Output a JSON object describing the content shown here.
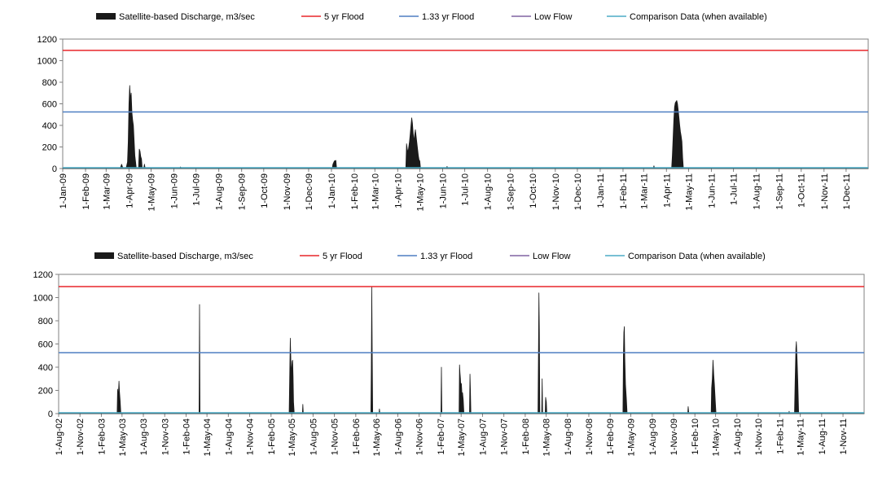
{
  "colors": {
    "discharge": "#1a1a1a",
    "flood5": "#e8262a",
    "flood133": "#4f7fc2",
    "lowflow": "#8064a2",
    "comparison": "#4bacc6",
    "axis": "#808080"
  },
  "chart_data": [
    {
      "type": "area",
      "legend": [
        {
          "key": "discharge",
          "label": "Satellite-based Discharge, m3/sec",
          "style": "area"
        },
        {
          "key": "flood5",
          "label": "5 yr Flood",
          "style": "line"
        },
        {
          "key": "flood133",
          "label": "1.33 yr Flood",
          "style": "line"
        },
        {
          "key": "lowflow",
          "label": "Low Flow",
          "style": "line"
        },
        {
          "key": "comparison",
          "label": "Comparison Data (when available)",
          "style": "line"
        }
      ],
      "legend_position": "top",
      "ylim": [
        0,
        1200
      ],
      "yticks": [
        0,
        200,
        400,
        600,
        800,
        1000,
        1200
      ],
      "xlim": [
        "2009-01-01",
        "2011-12-31"
      ],
      "x_tick_labels": [
        "1-Jan-09",
        "1-Feb-09",
        "1-Mar-09",
        "1-Apr-09",
        "1-May-09",
        "1-Jun-09",
        "1-Jul-09",
        "1-Aug-09",
        "1-Sep-09",
        "1-Oct-09",
        "1-Nov-09",
        "1-Dec-09",
        "1-Jan-10",
        "1-Feb-10",
        "1-Mar-10",
        "1-Apr-10",
        "1-May-10",
        "1-Jun-10",
        "1-Jul-10",
        "1-Aug-10",
        "1-Sep-10",
        "1-Oct-10",
        "1-Nov-10",
        "1-Dec-10",
        "1-Jan-11",
        "1-Feb-11",
        "1-Mar-11",
        "1-Apr-11",
        "1-May-11",
        "1-Jun-11",
        "1-Jul-11",
        "1-Aug-11",
        "1-Sep-11",
        "1-Oct-11",
        "1-Nov-11",
        "1-Dec-11"
      ],
      "x_tick_dates": [
        "2009-01-01",
        "2009-02-01",
        "2009-03-01",
        "2009-04-01",
        "2009-05-01",
        "2009-06-01",
        "2009-07-01",
        "2009-08-01",
        "2009-09-01",
        "2009-10-01",
        "2009-11-01",
        "2009-12-01",
        "2010-01-01",
        "2010-02-01",
        "2010-03-01",
        "2010-04-01",
        "2010-05-01",
        "2010-06-01",
        "2010-07-01",
        "2010-08-01",
        "2010-09-01",
        "2010-10-01",
        "2010-11-01",
        "2010-12-01",
        "2011-01-01",
        "2011-02-01",
        "2011-03-01",
        "2011-04-01",
        "2011-05-01",
        "2011-06-01",
        "2011-07-01",
        "2011-08-01",
        "2011-09-01",
        "2011-10-01",
        "2011-11-01",
        "2011-12-01"
      ],
      "reference_lines": {
        "flood5": 1095,
        "flood133": 525
      },
      "discharge": [
        [
          "2009-01-01",
          0
        ],
        [
          "2009-03-20",
          0
        ],
        [
          "2009-03-22",
          40
        ],
        [
          "2009-03-24",
          0
        ],
        [
          "2009-03-28",
          0
        ],
        [
          "2009-03-30",
          60
        ],
        [
          "2009-03-31",
          250
        ],
        [
          "2009-04-01",
          600
        ],
        [
          "2009-04-02",
          770
        ],
        [
          "2009-04-03",
          640
        ],
        [
          "2009-04-04",
          700
        ],
        [
          "2009-04-05",
          520
        ],
        [
          "2009-04-06",
          450
        ],
        [
          "2009-04-07",
          400
        ],
        [
          "2009-04-08",
          260
        ],
        [
          "2009-04-09",
          120
        ],
        [
          "2009-04-10",
          60
        ],
        [
          "2009-04-11",
          0
        ],
        [
          "2009-04-14",
          0
        ],
        [
          "2009-04-15",
          180
        ],
        [
          "2009-04-16",
          160
        ],
        [
          "2009-04-17",
          110
        ],
        [
          "2009-04-18",
          90
        ],
        [
          "2009-04-19",
          0
        ],
        [
          "2009-04-21",
          0
        ],
        [
          "2009-04-22",
          40
        ],
        [
          "2009-04-23",
          0
        ],
        [
          "2009-06-09",
          0
        ],
        [
          "2009-06-10",
          15
        ],
        [
          "2009-06-11",
          0
        ],
        [
          "2010-01-02",
          0
        ],
        [
          "2010-01-03",
          40
        ],
        [
          "2010-01-05",
          70
        ],
        [
          "2010-01-07",
          75
        ],
        [
          "2010-01-08",
          0
        ],
        [
          "2010-04-12",
          0
        ],
        [
          "2010-04-13",
          230
        ],
        [
          "2010-04-14",
          180
        ],
        [
          "2010-04-15",
          150
        ],
        [
          "2010-04-16",
          200
        ],
        [
          "2010-04-17",
          250
        ],
        [
          "2010-04-18",
          320
        ],
        [
          "2010-04-19",
          400
        ],
        [
          "2010-04-20",
          470
        ],
        [
          "2010-04-21",
          420
        ],
        [
          "2010-04-22",
          330
        ],
        [
          "2010-04-23",
          250
        ],
        [
          "2010-04-24",
          310
        ],
        [
          "2010-04-25",
          360
        ],
        [
          "2010-04-26",
          300
        ],
        [
          "2010-04-27",
          240
        ],
        [
          "2010-04-28",
          180
        ],
        [
          "2010-04-29",
          120
        ],
        [
          "2010-04-30",
          80
        ],
        [
          "2010-05-01",
          70
        ],
        [
          "2010-05-02",
          0
        ],
        [
          "2010-06-06",
          0
        ],
        [
          "2010-06-07",
          20
        ],
        [
          "2010-06-08",
          0
        ],
        [
          "2011-03-14",
          0
        ],
        [
          "2011-03-15",
          25
        ],
        [
          "2011-03-16",
          0
        ],
        [
          "2011-04-08",
          0
        ],
        [
          "2011-04-09",
          120
        ],
        [
          "2011-04-10",
          280
        ],
        [
          "2011-04-11",
          450
        ],
        [
          "2011-04-12",
          570
        ],
        [
          "2011-04-13",
          610
        ],
        [
          "2011-04-14",
          620
        ],
        [
          "2011-04-15",
          630
        ],
        [
          "2011-04-16",
          600
        ],
        [
          "2011-04-17",
          540
        ],
        [
          "2011-04-18",
          470
        ],
        [
          "2011-04-19",
          400
        ],
        [
          "2011-04-20",
          340
        ],
        [
          "2011-04-21",
          300
        ],
        [
          "2011-04-22",
          250
        ],
        [
          "2011-04-23",
          100
        ],
        [
          "2011-04-24",
          0
        ],
        [
          "2011-12-31",
          0
        ]
      ]
    },
    {
      "type": "area",
      "legend": [
        {
          "key": "discharge",
          "label": "Satellite-based Discharge, m3/sec",
          "style": "area"
        },
        {
          "key": "flood5",
          "label": "5 yr Flood",
          "style": "line"
        },
        {
          "key": "flood133",
          "label": "1.33 yr Flood",
          "style": "line"
        },
        {
          "key": "lowflow",
          "label": "Low Flow",
          "style": "line"
        },
        {
          "key": "comparison",
          "label": "Comparison Data (when available)",
          "style": "line"
        }
      ],
      "legend_position": "top",
      "ylim": [
        0,
        1200
      ],
      "yticks": [
        0,
        200,
        400,
        600,
        800,
        1000,
        1200
      ],
      "xlim": [
        "2002-08-01",
        "2012-01-31"
      ],
      "x_tick_labels": [
        "1-Aug-02",
        "1-Nov-02",
        "1-Feb-03",
        "1-May-03",
        "1-Aug-03",
        "1-Nov-03",
        "1-Feb-04",
        "1-May-04",
        "1-Aug-04",
        "1-Nov-04",
        "1-Feb-05",
        "1-May-05",
        "1-Aug-05",
        "1-Nov-05",
        "1-Feb-06",
        "1-May-06",
        "1-Aug-06",
        "1-Nov-06",
        "1-Feb-07",
        "1-May-07",
        "1-Aug-07",
        "1-Nov-07",
        "1-Feb-08",
        "1-May-08",
        "1-Aug-08",
        "1-Nov-08",
        "1-Feb-09",
        "1-May-09",
        "1-Aug-09",
        "1-Nov-09",
        "1-Feb-10",
        "1-May-10",
        "1-Aug-10",
        "1-Nov-10",
        "1-Feb-11",
        "1-May-11",
        "1-Aug-11",
        "1-Nov-11"
      ],
      "x_tick_dates": [
        "2002-08-01",
        "2002-11-01",
        "2003-02-01",
        "2003-05-01",
        "2003-08-01",
        "2003-11-01",
        "2004-02-01",
        "2004-05-01",
        "2004-08-01",
        "2004-11-01",
        "2005-02-01",
        "2005-05-01",
        "2005-08-01",
        "2005-11-01",
        "2006-02-01",
        "2006-05-01",
        "2006-08-01",
        "2006-11-01",
        "2007-02-01",
        "2007-05-01",
        "2007-08-01",
        "2007-11-01",
        "2008-02-01",
        "2008-05-01",
        "2008-08-01",
        "2008-11-01",
        "2009-02-01",
        "2009-05-01",
        "2009-08-01",
        "2009-11-01",
        "2010-02-01",
        "2010-05-01",
        "2010-08-01",
        "2010-11-01",
        "2011-02-01",
        "2011-05-01",
        "2011-08-01",
        "2011-11-01"
      ],
      "reference_lines": {
        "flood5": 1095,
        "flood133": 525
      },
      "discharge": [
        [
          "2002-08-01",
          0
        ],
        [
          "2003-04-10",
          0
        ],
        [
          "2003-04-12",
          210
        ],
        [
          "2003-04-15",
          150
        ],
        [
          "2003-04-18",
          280
        ],
        [
          "2003-04-20",
          190
        ],
        [
          "2003-04-23",
          110
        ],
        [
          "2003-04-26",
          0
        ],
        [
          "2004-03-28",
          0
        ],
        [
          "2004-03-30",
          940
        ],
        [
          "2004-04-01",
          0
        ],
        [
          "2005-04-20",
          0
        ],
        [
          "2005-04-23",
          400
        ],
        [
          "2005-04-25",
          650
        ],
        [
          "2005-04-27",
          500
        ],
        [
          "2005-04-29",
          300
        ],
        [
          "2005-05-01",
          400
        ],
        [
          "2005-05-03",
          450
        ],
        [
          "2005-05-05",
          460
        ],
        [
          "2005-05-07",
          320
        ],
        [
          "2005-05-09",
          100
        ],
        [
          "2005-05-12",
          0
        ],
        [
          "2005-06-16",
          0
        ],
        [
          "2005-06-18",
          80
        ],
        [
          "2005-06-20",
          0
        ],
        [
          "2006-04-07",
          0
        ],
        [
          "2006-04-09",
          400
        ],
        [
          "2006-04-11",
          1090
        ],
        [
          "2006-04-13",
          500
        ],
        [
          "2006-04-15",
          0
        ],
        [
          "2006-05-12",
          0
        ],
        [
          "2006-05-14",
          40
        ],
        [
          "2006-05-16",
          0
        ],
        [
          "2007-02-03",
          0
        ],
        [
          "2007-02-05",
          400
        ],
        [
          "2007-02-07",
          0
        ],
        [
          "2007-04-22",
          0
        ],
        [
          "2007-04-24",
          420
        ],
        [
          "2007-04-26",
          350
        ],
        [
          "2007-04-28",
          300
        ],
        [
          "2007-04-30",
          200
        ],
        [
          "2007-05-02",
          260
        ],
        [
          "2007-05-05",
          150
        ],
        [
          "2007-05-07",
          180
        ],
        [
          "2007-05-10",
          120
        ],
        [
          "2007-05-13",
          0
        ],
        [
          "2007-06-06",
          0
        ],
        [
          "2007-06-08",
          340
        ],
        [
          "2007-06-10",
          200
        ],
        [
          "2007-06-12",
          0
        ],
        [
          "2008-03-27",
          0
        ],
        [
          "2008-03-29",
          500
        ],
        [
          "2008-03-31",
          1040
        ],
        [
          "2008-04-02",
          700
        ],
        [
          "2008-04-04",
          0
        ],
        [
          "2008-04-12",
          0
        ],
        [
          "2008-04-14",
          300
        ],
        [
          "2008-04-16",
          0
        ],
        [
          "2008-04-27",
          0
        ],
        [
          "2008-04-29",
          140
        ],
        [
          "2008-05-02",
          100
        ],
        [
          "2008-05-04",
          0
        ],
        [
          "2009-03-28",
          0
        ],
        [
          "2009-03-30",
          500
        ],
        [
          "2009-04-01",
          700
        ],
        [
          "2009-04-03",
          750
        ],
        [
          "2009-04-05",
          480
        ],
        [
          "2009-04-08",
          250
        ],
        [
          "2009-04-12",
          120
        ],
        [
          "2009-04-15",
          0
        ],
        [
          "2010-01-01",
          0
        ],
        [
          "2010-01-03",
          60
        ],
        [
          "2010-01-06",
          0
        ],
        [
          "2010-04-12",
          0
        ],
        [
          "2010-04-14",
          220
        ],
        [
          "2010-04-17",
          300
        ],
        [
          "2010-04-20",
          460
        ],
        [
          "2010-04-23",
          340
        ],
        [
          "2010-04-26",
          250
        ],
        [
          "2010-04-30",
          100
        ],
        [
          "2010-05-03",
          0
        ],
        [
          "2011-03-12",
          0
        ],
        [
          "2011-03-14",
          20
        ],
        [
          "2011-03-16",
          0
        ],
        [
          "2011-04-06",
          0
        ],
        [
          "2011-04-09",
          300
        ],
        [
          "2011-04-12",
          560
        ],
        [
          "2011-04-14",
          620
        ],
        [
          "2011-04-17",
          480
        ],
        [
          "2011-04-20",
          300
        ],
        [
          "2011-04-24",
          0
        ],
        [
          "2012-01-31",
          0
        ]
      ]
    }
  ]
}
